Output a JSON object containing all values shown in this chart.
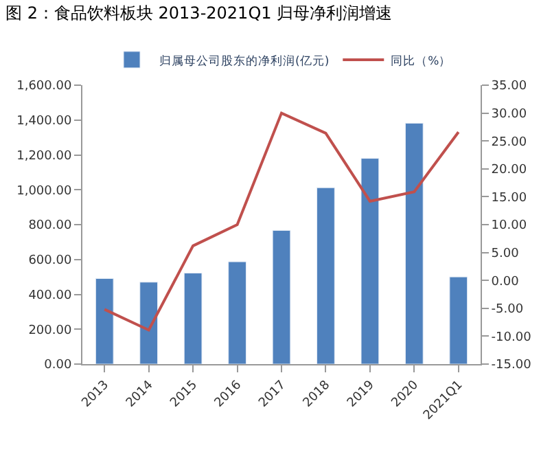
{
  "chart_data": {
    "type": "bar",
    "title": "图 2：食品饮料板块 2013-2021Q1 归母净利润增速",
    "categories": [
      "2013",
      "2014",
      "2015",
      "2016",
      "2017",
      "2018",
      "2019",
      "2020",
      "2021Q1"
    ],
    "series": [
      {
        "name": "归属母公司股东的净利润(亿元)",
        "color": "#4f81bd",
        "values": [
          491,
          470,
          522,
          587,
          767,
          1012,
          1180,
          1382,
          500
        ]
      },
      {
        "name": "同比（%）",
        "color": "#c0504d",
        "type": "line",
        "axis": "y2",
        "marker": "none",
        "values": [
          -5.2,
          -8.9,
          6.2,
          10.0,
          30.0,
          26.4,
          14.2,
          15.9,
          26.6
        ]
      }
    ],
    "ylim": [
      0,
      1600
    ],
    "yticks": [
      {
        "value": 0,
        "label": "0.00"
      },
      {
        "value": 200,
        "label": "200.00"
      },
      {
        "value": 400,
        "label": "400.00"
      },
      {
        "value": 600,
        "label": "600.00"
      },
      {
        "value": 800,
        "label": "800.00"
      },
      {
        "value": 1000,
        "label": "1,000.00"
      },
      {
        "value": 1200,
        "label": "1,200.00"
      },
      {
        "value": 1400,
        "label": "1,400.00"
      },
      {
        "value": 1600,
        "label": "1,600.00"
      }
    ],
    "y2lim": [
      -15,
      35
    ],
    "y2ticks": [
      {
        "value": -15,
        "label": "-15.00"
      },
      {
        "value": -10,
        "label": "-10.00"
      },
      {
        "value": -5,
        "label": "-5.00"
      },
      {
        "value": 0,
        "label": "0.00"
      },
      {
        "value": 5,
        "label": "5.00"
      },
      {
        "value": 10,
        "label": "10.00"
      },
      {
        "value": 15,
        "label": "15.00"
      },
      {
        "value": 20,
        "label": "20.00"
      },
      {
        "value": 25,
        "label": "25.00"
      },
      {
        "value": 30,
        "label": "30.00"
      },
      {
        "value": 35,
        "label": "35.00"
      }
    ],
    "legend": "top"
  }
}
